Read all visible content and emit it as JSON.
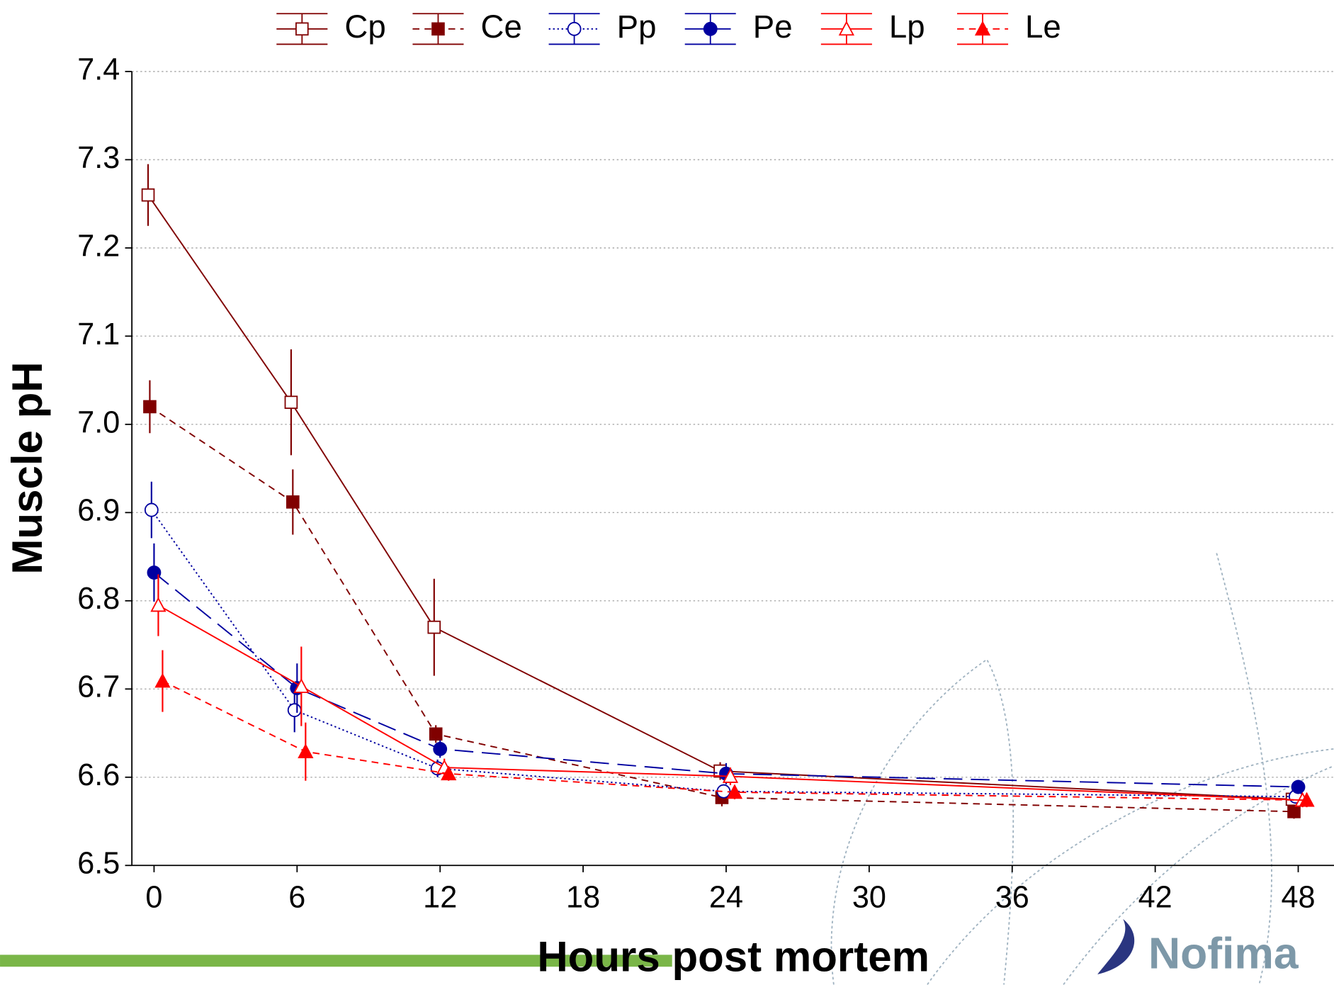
{
  "chart_data": {
    "type": "line",
    "x_label": "Hours post mortem",
    "y_label": "Muscle pH",
    "x": [
      0,
      6,
      12,
      24,
      48
    ],
    "series": [
      {
        "name": "Cp",
        "color": "#800000",
        "dash": "solid",
        "marker": "square",
        "filled": false,
        "values": [
          7.26,
          7.025,
          6.77,
          6.607,
          6.575
        ],
        "errors": [
          0.035,
          0.06,
          0.055,
          0.01,
          0.01
        ]
      },
      {
        "name": "Ce",
        "color": "#800000",
        "dash": "dashed",
        "marker": "square",
        "filled": true,
        "values": [
          7.02,
          6.912,
          6.649,
          6.577,
          6.561
        ],
        "errors": [
          0.03,
          0.037,
          0.01,
          0.01,
          0.008
        ]
      },
      {
        "name": "Pp",
        "color": "#0000a0",
        "dash": "dotted",
        "marker": "circle",
        "filled": false,
        "values": [
          6.903,
          6.676,
          6.61,
          6.584,
          6.578
        ],
        "errors": [
          0.032,
          0.025,
          0.01,
          0.008,
          0.008
        ]
      },
      {
        "name": "Pe",
        "color": "#0000a0",
        "dash": "longdash",
        "marker": "circle",
        "filled": true,
        "values": [
          6.832,
          6.701,
          6.632,
          6.604,
          6.589
        ],
        "errors": [
          0.033,
          0.028,
          0.01,
          0.012,
          0.008
        ]
      },
      {
        "name": "Lp",
        "color": "#ff0000",
        "dash": "solid",
        "marker": "triangle",
        "filled": false,
        "values": [
          6.795,
          6.703,
          6.611,
          6.601,
          6.574
        ],
        "errors": [
          0.035,
          0.045,
          0.01,
          0.01,
          0.008
        ]
      },
      {
        "name": "Le",
        "color": "#ff0000",
        "dash": "dashed",
        "marker": "triangle",
        "filled": true,
        "values": [
          6.709,
          6.629,
          6.604,
          6.583,
          6.574
        ],
        "errors": [
          0.035,
          0.033,
          0.008,
          0.008,
          0.008
        ]
      }
    ],
    "xlim": [
      -0.93,
      49.5
    ],
    "xticks": [
      0,
      6,
      12,
      18,
      24,
      30,
      36,
      42,
      48
    ],
    "ylim": [
      6.5,
      7.4
    ],
    "yticks": [
      6.5,
      6.6,
      6.7,
      6.8,
      6.9,
      {
        "value": 7,
        "label": "7.0"
      },
      7.1,
      7.2,
      7.3,
      7.4
    ],
    "grid": true,
    "legend": "top"
  },
  "logo": "Nofima"
}
